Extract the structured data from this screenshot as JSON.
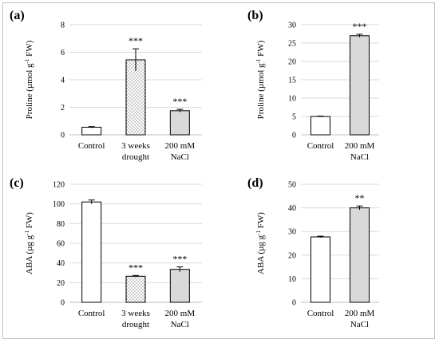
{
  "chart_data": [
    {
      "panel": "(a)",
      "type": "bar",
      "ylabel": {
        "main": "Proline (µmol g",
        "sup": "-1",
        "rest": " FW)"
      },
      "ylim": [
        0,
        8
      ],
      "yticks": [
        0,
        2,
        4,
        6,
        8
      ],
      "categories": [
        [
          "Control"
        ],
        [
          "3 weeks",
          "drought"
        ],
        [
          "200 mM",
          "NaCl"
        ]
      ],
      "values": [
        0.55,
        5.45,
        1.75
      ],
      "errors": [
        0.05,
        0.8,
        0.1
      ],
      "significance": [
        "",
        "***",
        "***"
      ],
      "fills": [
        "white",
        "dots",
        "gray"
      ]
    },
    {
      "panel": "(b)",
      "type": "bar",
      "ylabel": {
        "main": "Proline (µmol g",
        "sup": "-1",
        "rest": " FW)"
      },
      "ylim": [
        0,
        30
      ],
      "yticks": [
        0,
        5,
        10,
        15,
        20,
        25,
        30
      ],
      "categories": [
        [
          "Control"
        ],
        [
          "200 mM",
          "NaCl"
        ]
      ],
      "values": [
        5.0,
        27.0
      ],
      "errors": [
        0.1,
        0.4
      ],
      "significance": [
        "",
        "***"
      ],
      "fills": [
        "white",
        "gray"
      ]
    },
    {
      "panel": "(c)",
      "type": "bar",
      "ylabel": {
        "main": "ABA (µg g",
        "sup": "-1",
        "rest": " FW)"
      },
      "ylim": [
        0,
        120
      ],
      "yticks": [
        0,
        20,
        40,
        60,
        80,
        100,
        120
      ],
      "categories": [
        [
          "Control"
        ],
        [
          "3 weeks",
          "drought"
        ],
        [
          "200 mM",
          "NaCl"
        ]
      ],
      "values": [
        102,
        26.5,
        33.5
      ],
      "errors": [
        2,
        0.8,
        2.5
      ],
      "significance": [
        "",
        "***",
        "***"
      ],
      "fills": [
        "white",
        "dots",
        "gray"
      ]
    },
    {
      "panel": "(d)",
      "type": "bar",
      "ylabel": {
        "main": "ABA (µg g",
        "sup": "-1",
        "rest": " FW)"
      },
      "ylim": [
        0,
        50
      ],
      "yticks": [
        0,
        10,
        20,
        30,
        40,
        50
      ],
      "categories": [
        [
          "Control"
        ],
        [
          "200 mM",
          "NaCl"
        ]
      ],
      "values": [
        27.7,
        40.0
      ],
      "errors": [
        0.3,
        0.8
      ],
      "significance": [
        "",
        "**"
      ],
      "fills": [
        "white",
        "gray"
      ]
    }
  ],
  "colors": {
    "bar_gray": "#d9d9d9",
    "bar_white": "#ffffff",
    "grid": "#d9d9d9",
    "outline": "#000000"
  }
}
